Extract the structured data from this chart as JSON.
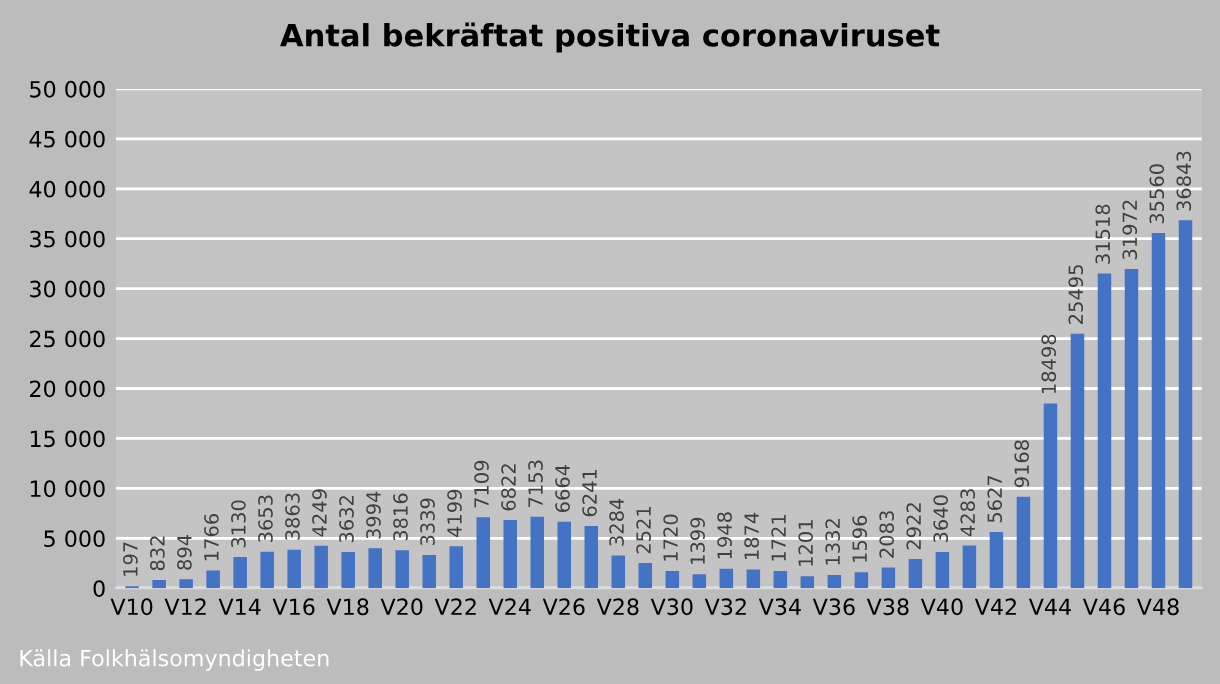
{
  "chart_data": {
    "type": "bar",
    "title": "Antal bekräftat positiva coronaviruset",
    "categories": [
      "V10",
      null,
      "V12",
      null,
      "V14",
      null,
      "V16",
      null,
      "V18",
      null,
      "V20",
      null,
      "V22",
      null,
      "V24",
      null,
      "V26",
      null,
      "V28",
      null,
      "V30",
      null,
      "V32",
      null,
      "V34",
      null,
      "V36",
      null,
      "V38",
      null,
      "V40",
      null,
      "V42",
      null,
      "V44",
      null,
      "V46",
      null,
      "V48",
      null
    ],
    "values": [
      197,
      832,
      894,
      1766,
      3130,
      3653,
      3863,
      4249,
      3632,
      3994,
      3816,
      3339,
      4199,
      7109,
      6822,
      7153,
      6664,
      6241,
      3284,
      2521,
      1720,
      1399,
      1948,
      1874,
      1721,
      1201,
      1332,
      1596,
      2083,
      2922,
      3640,
      4283,
      5627,
      9168,
      18498,
      25495,
      31518,
      31972,
      35560,
      36843
    ],
    "color": "#4472c4",
    "data_labels": true,
    "grid": "y",
    "legend": false,
    "ylim": [
      0,
      50000
    ],
    "yticks": [
      0,
      {
        "value": 5000,
        "label": "5 000"
      },
      {
        "value": 10000,
        "label": "10 000"
      },
      {
        "value": 15000,
        "label": "15 000"
      },
      {
        "value": 20000,
        "label": "20 000"
      },
      {
        "value": 25000,
        "label": "25 000"
      },
      {
        "value": 30000,
        "label": "30 000"
      },
      {
        "value": 35000,
        "label": "35 000"
      },
      {
        "value": 40000,
        "label": "40 000"
      },
      {
        "value": 45000,
        "label": "45 000"
      },
      {
        "value": 50000,
        "label": "50 000"
      }
    ],
    "annotations": [
      "Källa Folkhälsomyndigheten"
    ]
  }
}
